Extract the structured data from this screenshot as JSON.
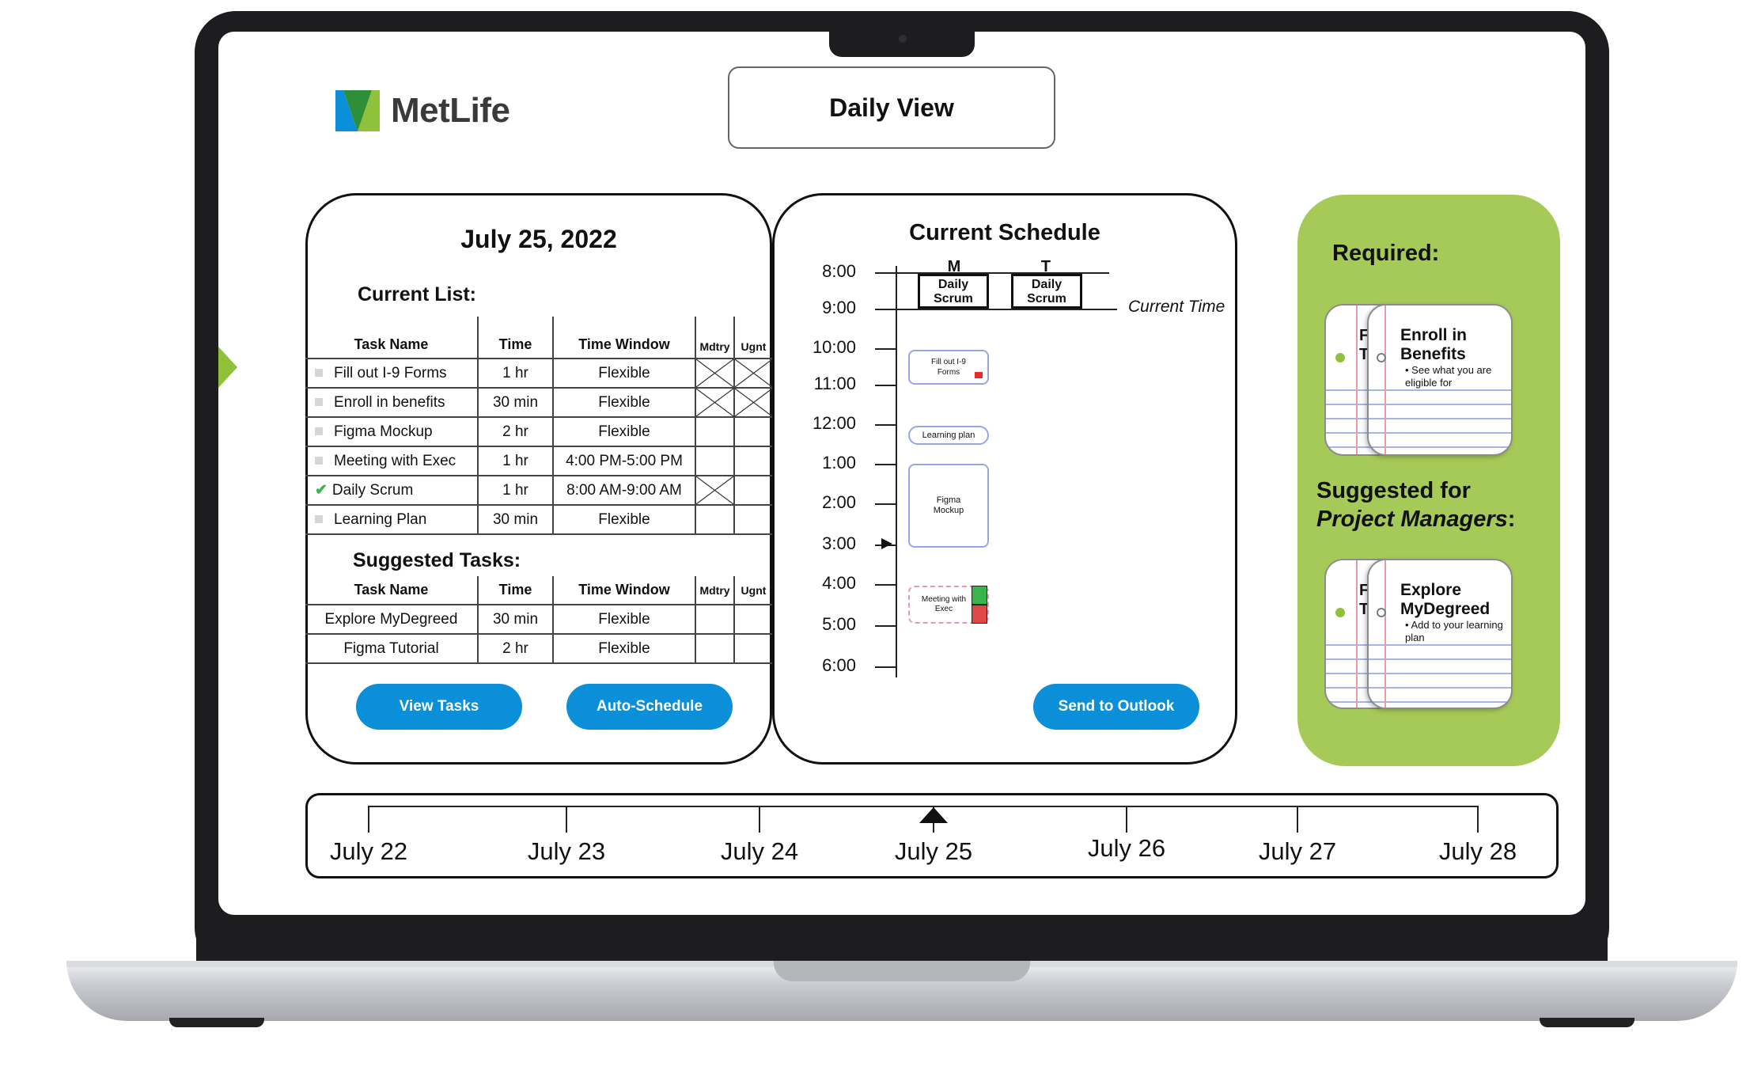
{
  "logo": {
    "brand": "MetLife",
    "colors": {
      "blue": "#0a8fd8",
      "green": "#8fc23a",
      "dark_green": "#2d8f3a"
    }
  },
  "header": {
    "view_label": "Daily View"
  },
  "left_panel": {
    "date": "July 25, 2022",
    "current_list_title": "Current List:",
    "columns": [
      "Task Name",
      "Time",
      "Time Window",
      "Mdtry",
      "Ugnt"
    ],
    "current_tasks": [
      {
        "name": "Fill out I-9 Forms",
        "time": "1 hr",
        "window": "Flexible",
        "mandatory": true,
        "urgent": true,
        "done": false
      },
      {
        "name": "Enroll in benefits",
        "time": "30 min",
        "window": "Flexible",
        "mandatory": true,
        "urgent": true,
        "done": false
      },
      {
        "name": "Figma Mockup",
        "time": "2 hr",
        "window": "Flexible",
        "mandatory": false,
        "urgent": false,
        "done": false
      },
      {
        "name": "Meeting with Exec",
        "time": "1 hr",
        "window": "4:00 PM-5:00 PM",
        "mandatory": false,
        "urgent": false,
        "done": false
      },
      {
        "name": "Daily Scrum",
        "time": "1 hr",
        "window": "8:00 AM-9:00 AM",
        "mandatory": true,
        "urgent": false,
        "done": true
      },
      {
        "name": "Learning Plan",
        "time": "30 min",
        "window": "Flexible",
        "mandatory": false,
        "urgent": false,
        "done": false
      }
    ],
    "suggested_title": "Suggested Tasks:",
    "suggested_tasks": [
      {
        "name": "Explore MyDegreed",
        "time": "30 min",
        "window": "Flexible"
      },
      {
        "name": "Figma Tutorial",
        "time": "2 hr",
        "window": "Flexible"
      }
    ],
    "view_tasks_label": "View Tasks",
    "auto_schedule_label": "Auto-Schedule"
  },
  "schedule": {
    "title": "Current Schedule",
    "hours": [
      "8:00",
      "9:00",
      "10:00",
      "11:00",
      "12:00",
      "1:00",
      "2:00",
      "3:00",
      "4:00",
      "5:00",
      "6:00"
    ],
    "current_time_label": "Current Time",
    "day_m": "M",
    "day_t": "T",
    "scrum_m": "Daily Scrum",
    "scrum_t": "Daily Scrum",
    "block_forms": "Fill out I-9 Forms",
    "block_learning": "Learning plan",
    "block_figma": "Figma Mockup",
    "block_meeting": "Meeting with Exec",
    "send_label": "Send to Outlook"
  },
  "required": {
    "title": "Required:",
    "card_title": "Enroll in Benefits",
    "card_bullet": "See what you are eligible for",
    "back_peek": "F\nT"
  },
  "suggested_pm": {
    "title_line1": "Suggested for",
    "title_line2": "Project Managers",
    "title_colon": ":",
    "card_title": "Explore MyDegreed",
    "card_bullet": "Add to your learning plan",
    "back_peek": "F\nT"
  },
  "timeline": {
    "dates": [
      "July 22",
      "July 23",
      "July 24",
      "July 25",
      "July 26",
      "July 27",
      "July 28"
    ],
    "selected": "July 25"
  }
}
